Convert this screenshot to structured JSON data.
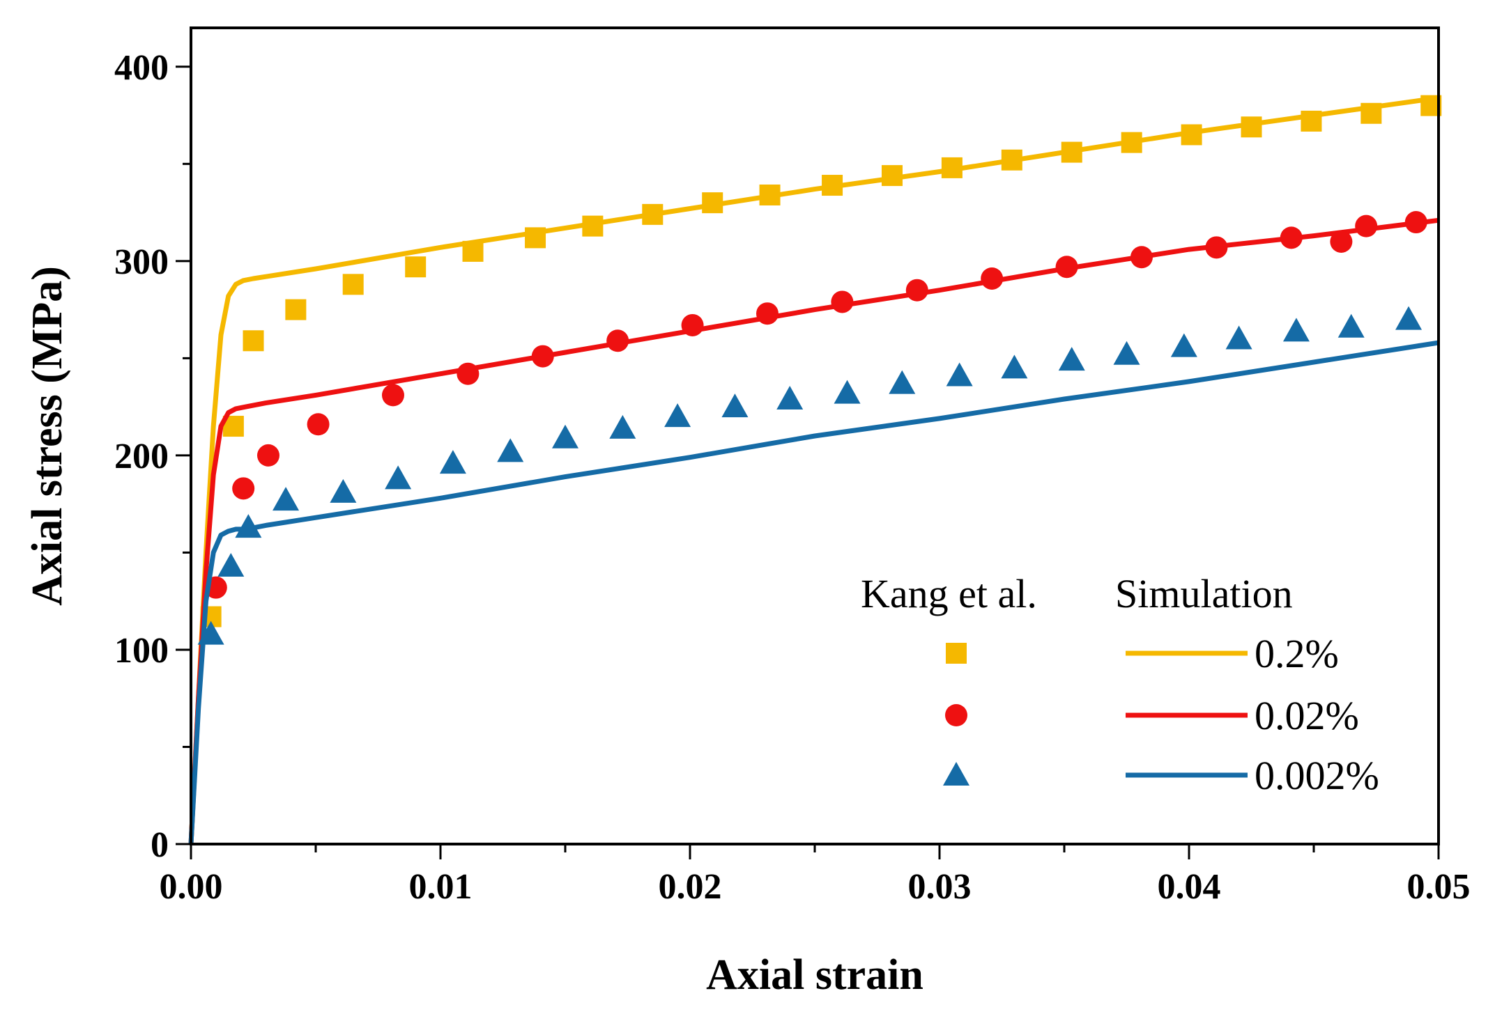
{
  "chart_data": {
    "type": "line",
    "title": "",
    "xlabel": "Axial strain",
    "ylabel": "Axial stress (MPa)",
    "xlim": [
      0,
      0.05
    ],
    "ylim": [
      0,
      420
    ],
    "x_ticks": [
      0.0,
      0.01,
      0.02,
      0.03,
      0.04,
      0.05
    ],
    "x_tick_labels": [
      "0.00",
      "0.01",
      "0.02",
      "0.03",
      "0.04",
      "0.05"
    ],
    "y_ticks": [
      0,
      100,
      200,
      300,
      400
    ],
    "y_tick_labels": [
      "0",
      "100",
      "200",
      "300",
      "400"
    ],
    "grid": false,
    "legend": {
      "placement": "bottom-right",
      "experiment_header": "Kang et al.",
      "simulation_header": "Simulation",
      "entries": [
        "0.2%",
        "0.02%",
        "0.002%"
      ]
    },
    "series": [
      {
        "name": "0.2%",
        "color": "#F5B800",
        "marker": "square",
        "experiment": {
          "x": [
            0.0008,
            0.0017,
            0.0025,
            0.0042,
            0.0065,
            0.009,
            0.0113,
            0.0138,
            0.0161,
            0.0185,
            0.0209,
            0.0232,
            0.0257,
            0.0281,
            0.0305,
            0.0329,
            0.0353,
            0.0377,
            0.0401,
            0.0425,
            0.0449,
            0.0473,
            0.0497
          ],
          "y": [
            117,
            215,
            259,
            275,
            288,
            297,
            305,
            312,
            318,
            324,
            330,
            334,
            339,
            344,
            348,
            352,
            356,
            361,
            365,
            369,
            372,
            376,
            380
          ]
        },
        "simulation": {
          "x": [
            0,
            0.0003,
            0.0006,
            0.0009,
            0.0012,
            0.0015,
            0.0018,
            0.0021,
            0.0025,
            0.003,
            0.005,
            0.01,
            0.015,
            0.02,
            0.025,
            0.03,
            0.035,
            0.04,
            0.045,
            0.05
          ],
          "y": [
            0,
            75,
            150,
            215,
            262,
            282,
            288,
            290,
            291,
            292,
            296,
            307,
            317,
            327,
            337,
            346,
            356,
            366,
            375,
            384
          ]
        }
      },
      {
        "name": "0.02%",
        "color": "#EE1111",
        "marker": "circle",
        "experiment": {
          "x": [
            0.001,
            0.0021,
            0.0031,
            0.0051,
            0.0081,
            0.0111,
            0.0141,
            0.0171,
            0.0201,
            0.0231,
            0.0261,
            0.0291,
            0.0321,
            0.0351,
            0.0381,
            0.0411,
            0.0441,
            0.0461,
            0.0471,
            0.0491
          ],
          "y": [
            132,
            183,
            200,
            216,
            231,
            242,
            251,
            259,
            267,
            273,
            279,
            285,
            291,
            297,
            302,
            307,
            312,
            310,
            318,
            320
          ]
        },
        "simulation": {
          "x": [
            0,
            0.0003,
            0.0006,
            0.0009,
            0.0012,
            0.0015,
            0.0018,
            0.0022,
            0.003,
            0.005,
            0.01,
            0.015,
            0.02,
            0.025,
            0.03,
            0.035,
            0.04,
            0.045,
            0.05
          ],
          "y": [
            0,
            75,
            140,
            190,
            215,
            222,
            224,
            225,
            227,
            231,
            242,
            253,
            264,
            275,
            285,
            296,
            306,
            313,
            321
          ]
        }
      },
      {
        "name": "0.002%",
        "color": "#156BA6",
        "marker": "triangle",
        "experiment": {
          "x": [
            0.0008,
            0.0016,
            0.0023,
            0.0038,
            0.0061,
            0.0083,
            0.0105,
            0.0128,
            0.015,
            0.0173,
            0.0195,
            0.0218,
            0.024,
            0.0263,
            0.0285,
            0.0308,
            0.033,
            0.0353,
            0.0375,
            0.0398,
            0.042,
            0.0443,
            0.0465,
            0.0488
          ],
          "y": [
            108,
            143,
            163,
            177,
            181,
            188,
            196,
            202,
            209,
            214,
            220,
            225,
            229,
            232,
            237,
            241,
            245,
            249,
            252,
            256,
            260,
            264,
            266,
            270
          ]
        },
        "simulation": {
          "x": [
            0,
            0.0003,
            0.0006,
            0.0009,
            0.0012,
            0.0015,
            0.0018,
            0.0022,
            0.003,
            0.005,
            0.01,
            0.015,
            0.02,
            0.025,
            0.03,
            0.035,
            0.04,
            0.045,
            0.05
          ],
          "y": [
            0,
            70,
            125,
            150,
            159,
            161,
            162,
            162,
            164,
            168,
            178,
            189,
            199,
            210,
            219,
            229,
            238,
            248,
            258
          ]
        }
      }
    ]
  }
}
